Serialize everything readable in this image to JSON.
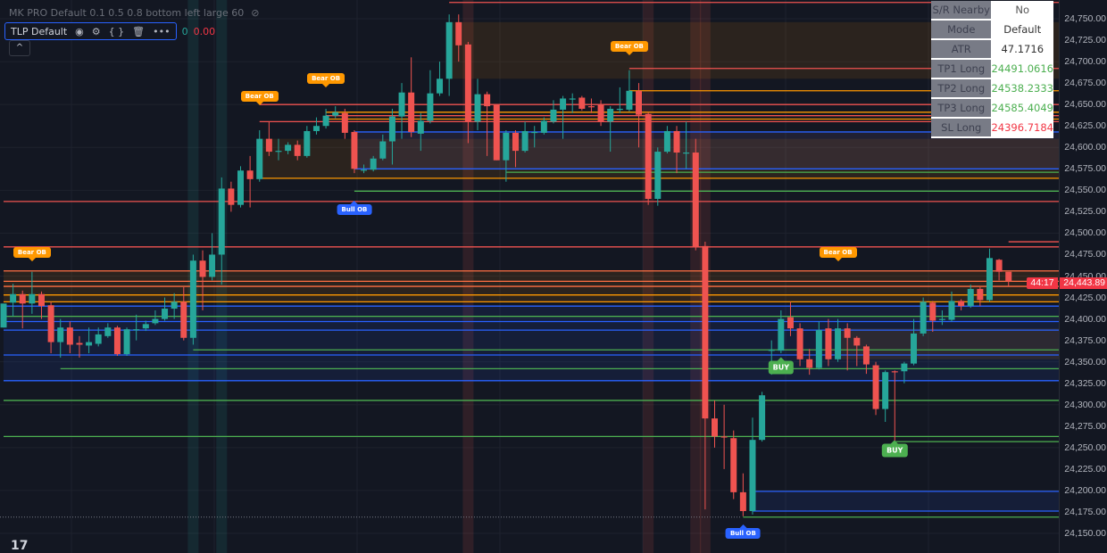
{
  "legend": {
    "indicator1": "MK PRO Default 0.1 0.5 0.8 bottom left large 60",
    "indicator2": "TLP Default",
    "value_green": "0",
    "value_red": "0.00",
    "collapse_glyph": "^"
  },
  "info_table": [
    {
      "label": "S/R Nearby",
      "value": "No",
      "color": "#555555"
    },
    {
      "label": "Mode",
      "value": "Default",
      "color": "#333333"
    },
    {
      "label": "ATR",
      "value": "47.1716",
      "color": "#333333"
    },
    {
      "label": "TP1 Long",
      "value": "24491.0616",
      "color": "#4caf50"
    },
    {
      "label": "TP2 Long",
      "value": "24538.2333",
      "color": "#4caf50"
    },
    {
      "label": "TP3 Long",
      "value": "24585.4049",
      "color": "#4caf50"
    },
    {
      "label": "SL Long",
      "value": "24396.7184",
      "color": "#f23645"
    }
  ],
  "price_tag": {
    "price": "24,443.89",
    "countdown": "44:17"
  },
  "chart_data": {
    "type": "candlestick",
    "ylim": [
      24140,
      24772
    ],
    "y_ticks": [
      "24,750.00",
      "24,725.00",
      "24,700.00",
      "24,675.00",
      "24,650.00",
      "24,625.00",
      "24,600.00",
      "24,575.00",
      "24,550.00",
      "24,525.00",
      "24,500.00",
      "24,475.00",
      "24,450.00",
      "24,425.00",
      "24,400.00",
      "24,375.00",
      "24,350.00",
      "24,325.00",
      "24,300.00",
      "24,275.00",
      "24,250.00",
      "24,225.00",
      "24,200.00",
      "24,175.00",
      "24,150.00"
    ],
    "colors": {
      "up": "#26a69a",
      "down": "#ef5350"
    },
    "candles_ohlc": [
      [
        24390,
        24395,
        24390,
        24418
      ],
      [
        24419,
        24441,
        24403,
        24429
      ],
      [
        24429,
        24433,
        24389,
        24418
      ],
      [
        24418,
        24455,
        24406,
        24429
      ],
      [
        24429,
        24432,
        24400,
        24415
      ],
      [
        24416,
        24420,
        24360,
        24373
      ],
      [
        24373,
        24400,
        24355,
        24390
      ],
      [
        24390,
        24397,
        24360,
        24370
      ],
      [
        24372,
        24380,
        24355,
        24370
      ],
      [
        24369,
        24390,
        24360,
        24373
      ],
      [
        24371,
        24390,
        24368,
        24382
      ],
      [
        24380,
        24395,
        24378,
        24390
      ],
      [
        24390,
        24392,
        24357,
        24359
      ],
      [
        24359,
        24390,
        24357,
        24388
      ],
      [
        24387,
        24405,
        24375,
        24388
      ],
      [
        24389,
        24398,
        24386,
        24394
      ],
      [
        24395,
        24410,
        24393,
        24400
      ],
      [
        24400,
        24425,
        24398,
        24412
      ],
      [
        24412,
        24430,
        24400,
        24420
      ],
      [
        24420,
        24437,
        24375,
        24378
      ],
      [
        24378,
        24475,
        24370,
        24468
      ],
      [
        24468,
        24480,
        24410,
        24449
      ],
      [
        24449,
        24500,
        24445,
        24475
      ],
      [
        24475,
        24565,
        24440,
        24552
      ],
      [
        24552,
        24560,
        24525,
        24533
      ],
      [
        24533,
        24578,
        24530,
        24573
      ],
      [
        24573,
        24590,
        24530,
        24563
      ],
      [
        24563,
        24620,
        24560,
        24610
      ],
      [
        24610,
        24630,
        24590,
        24595
      ],
      [
        24596,
        24610,
        24585,
        24596
      ],
      [
        24596,
        24606,
        24592,
        24603
      ],
      [
        24603,
        24608,
        24585,
        24590
      ],
      [
        24590,
        24625,
        24588,
        24619
      ],
      [
        24619,
        24635,
        24615,
        24625
      ],
      [
        24625,
        24645,
        24622,
        24637
      ],
      [
        24637,
        24648,
        24634,
        24641
      ],
      [
        24640,
        24645,
        24610,
        24617
      ],
      [
        24618,
        24620,
        24570,
        24575
      ],
      [
        24574,
        24580,
        24570,
        24574
      ],
      [
        24574,
        24590,
        24572,
        24587
      ],
      [
        24587,
        24615,
        24585,
        24607
      ],
      [
        24607,
        24645,
        24580,
        24636
      ],
      [
        24636,
        24675,
        24610,
        24664
      ],
      [
        24664,
        24705,
        24612,
        24618
      ],
      [
        24616,
        24640,
        24596,
        24631
      ],
      [
        24631,
        24690,
        24628,
        24663
      ],
      [
        24663,
        24700,
        24660,
        24680
      ],
      [
        24680,
        24755,
        24660,
        24746
      ],
      [
        24746,
        24755,
        24700,
        24719
      ],
      [
        24720,
        24723,
        24605,
        24630
      ],
      [
        24630,
        24680,
        24620,
        24662
      ],
      [
        24662,
        24665,
        24590,
        24648
      ],
      [
        24650,
        24642,
        24585,
        24585
      ],
      [
        24585,
        24620,
        24560,
        24617
      ],
      [
        24617,
        24620,
        24577,
        24596
      ],
      [
        24596,
        24630,
        24594,
        24619
      ],
      [
        24618,
        24625,
        24600,
        24618
      ],
      [
        24617,
        24635,
        24615,
        24631
      ],
      [
        24630,
        24655,
        24628,
        24644
      ],
      [
        24644,
        24660,
        24610,
        24657
      ],
      [
        24656,
        24663,
        24640,
        24657
      ],
      [
        24658,
        24660,
        24643,
        24645
      ],
      [
        24648,
        24657,
        24640,
        24647
      ],
      [
        24650,
        24655,
        24625,
        24630
      ],
      [
        24630,
        24648,
        24595,
        24645
      ],
      [
        24645,
        24670,
        24640,
        24645
      ],
      [
        24644,
        24690,
        24642,
        24666
      ],
      [
        24666,
        24675,
        24600,
        24638
      ],
      [
        24639,
        24641,
        24533,
        24540
      ],
      [
        24540,
        24600,
        24532,
        24595
      ],
      [
        24595,
        24625,
        24593,
        24619
      ],
      [
        24619,
        24625,
        24570,
        24594
      ],
      [
        24594,
        24630,
        24575,
        24594
      ],
      [
        24594,
        24610,
        24480,
        24484
      ],
      [
        24485,
        24490,
        24178,
        24284
      ],
      [
        24284,
        24305,
        24250,
        24263
      ],
      [
        24263,
        24300,
        24225,
        24262
      ],
      [
        24261,
        24270,
        24190,
        24198
      ],
      [
        24198,
        24220,
        24170,
        24176
      ],
      [
        24176,
        24285,
        24172,
        24259
      ],
      [
        24259,
        24315,
        24257,
        24311
      ],
      [
        24363,
        24375,
        24335,
        24364
      ],
      [
        24363,
        24410,
        24360,
        24400
      ],
      [
        24402,
        24420,
        24380,
        24389
      ],
      [
        24389,
        24395,
        24345,
        24353
      ],
      [
        24353,
        24365,
        24335,
        24343
      ],
      [
        24343,
        24397,
        24341,
        24387
      ],
      [
        24389,
        24400,
        24345,
        24353
      ],
      [
        24353,
        24400,
        24350,
        24389
      ],
      [
        24389,
        24395,
        24340,
        24378
      ],
      [
        24378,
        24380,
        24345,
        24369
      ],
      [
        24368,
        24370,
        24336,
        24347
      ],
      [
        24346,
        24350,
        24288,
        24295
      ],
      [
        24295,
        24340,
        24280,
        24338
      ],
      [
        24339,
        24340,
        24258,
        24338
      ],
      [
        24339,
        24350,
        24325,
        24348
      ],
      [
        24348,
        24400,
        24346,
        24383
      ],
      [
        24383,
        24425,
        24380,
        24420
      ],
      [
        24419,
        24421,
        24385,
        24398
      ],
      [
        24399,
        24410,
        24393,
        24400
      ],
      [
        24399,
        24432,
        24397,
        24421
      ],
      [
        24421,
        24423,
        24410,
        24415
      ],
      [
        24415,
        24440,
        24413,
        24435
      ],
      [
        24435,
        24437,
        24415,
        24422
      ],
      [
        24422,
        24482,
        24420,
        24471
      ],
      [
        24469,
        24470,
        24445,
        24455
      ],
      [
        24455,
        24452,
        24438,
        24444
      ]
    ],
    "levels": [
      {
        "price": 24769,
        "color": "#ef5350",
        "from": 47
      },
      {
        "price": 24692,
        "color": "#ef5350",
        "from": 66
      },
      {
        "price": 24666,
        "color": "#ff9800",
        "from": 66
      },
      {
        "price": 24650,
        "color": "#ef5350",
        "from": 27
      },
      {
        "price": 24641,
        "color": "#ff9800",
        "from": 34
      },
      {
        "price": 24637,
        "color": "#ef5350",
        "from": 34
      },
      {
        "price": 24633,
        "color": "#ff9800",
        "from": 34
      },
      {
        "price": 24630,
        "color": "#ef5350",
        "from": 27
      },
      {
        "price": 24618,
        "color": "#2962ff",
        "from": 37
      },
      {
        "price": 24575,
        "color": "#2962ff",
        "from": 37
      },
      {
        "price": 24571,
        "color": "#4caf50",
        "from": 53
      },
      {
        "price": 24564,
        "color": "#ff9800",
        "from": 27
      },
      {
        "price": 24549,
        "color": "#4caf50",
        "from": 37
      },
      {
        "price": 24537,
        "color": "#ef5350",
        "from": 0
      },
      {
        "price": 24484,
        "color": "#ef5350",
        "from": 0
      },
      {
        "price": 24490,
        "color": "#ef5350",
        "from": 106
      },
      {
        "price": 24456,
        "color": "#ff7043",
        "from": 0
      },
      {
        "price": 24443.89,
        "color": "#ff7043",
        "from": 0
      },
      {
        "price": 24438,
        "color": "#ff7043",
        "from": 0
      },
      {
        "price": 24428,
        "color": "#ff9800",
        "from": 0
      },
      {
        "price": 24420,
        "color": "#ff9800",
        "from": 0
      },
      {
        "price": 24415,
        "color": "#2962ff",
        "from": 0
      },
      {
        "price": 24403,
        "color": "#4caf50",
        "from": 0
      },
      {
        "price": 24397,
        "color": "#2962ff",
        "from": 0
      },
      {
        "price": 24387,
        "color": "#2962ff",
        "from": 0
      },
      {
        "price": 24364,
        "color": "#4caf50",
        "from": 20
      },
      {
        "price": 24358,
        "color": "#2962ff",
        "from": 0
      },
      {
        "price": 24342,
        "color": "#4caf50",
        "from": 6
      },
      {
        "price": 24328,
        "color": "#2962ff",
        "from": 0
      },
      {
        "price": 24305,
        "color": "#4caf50",
        "from": 0
      },
      {
        "price": 24263,
        "color": "#4caf50",
        "from": 0
      },
      {
        "price": 24257,
        "color": "#4caf50",
        "from": 94
      },
      {
        "price": 24199,
        "color": "#2962ff",
        "from": 79
      },
      {
        "price": 24176,
        "color": "#2962ff",
        "from": 79
      },
      {
        "price": 24169,
        "color": "#4caf50",
        "from": 78
      }
    ],
    "zones": [
      {
        "top": 24746,
        "bottom": 24680,
        "color": "#ff9800",
        "from": 47
      },
      {
        "top": 24610,
        "bottom": 24564,
        "color": "#ff9800",
        "from": 27
      },
      {
        "top": 24618,
        "bottom": 24574,
        "color": "#9575cd",
        "from": 37
      },
      {
        "top": 24456,
        "bottom": 24420,
        "color": "#ff9800",
        "from": 0
      },
      {
        "top": 24415,
        "bottom": 24328,
        "color": "#2962ff",
        "from": 0
      },
      {
        "top": 24389,
        "bottom": 24353,
        "color": "#ff9800",
        "from": 88
      },
      {
        "top": 24199,
        "bottom": 24176,
        "color": "#2962ff",
        "from": 79
      }
    ],
    "bands": [
      {
        "index": 20,
        "color": "#26a69a"
      },
      {
        "index": 23,
        "color": "#26a69a"
      },
      {
        "index": 49,
        "color": "#ef5350"
      },
      {
        "index": 68,
        "color": "#ef5350"
      },
      {
        "index": 73,
        "color": "#ef5350"
      },
      {
        "index": 74,
        "color": "#ef5350"
      }
    ],
    "signals": [
      {
        "text": "Bear OB",
        "kind": "bear",
        "index": 3,
        "price": 24478
      },
      {
        "text": "Bear OB",
        "kind": "bear",
        "index": 27,
        "price": 24660
      },
      {
        "text": "Bear OB",
        "kind": "bear",
        "index": 34,
        "price": 24680
      },
      {
        "text": "Bear OB",
        "kind": "bear",
        "index": 66,
        "price": 24718
      },
      {
        "text": "Bear OB",
        "kind": "bear",
        "index": 88,
        "price": 24478
      },
      {
        "text": "Bull OB",
        "kind": "bull",
        "index": 37,
        "price": 24527
      },
      {
        "text": "Bull OB",
        "kind": "bull",
        "index": 78,
        "price": 24150
      },
      {
        "text": "BUY",
        "kind": "buy",
        "index": 82,
        "price": 24343
      },
      {
        "text": "BUY",
        "kind": "buy",
        "index": 94,
        "price": 24247
      }
    ]
  }
}
